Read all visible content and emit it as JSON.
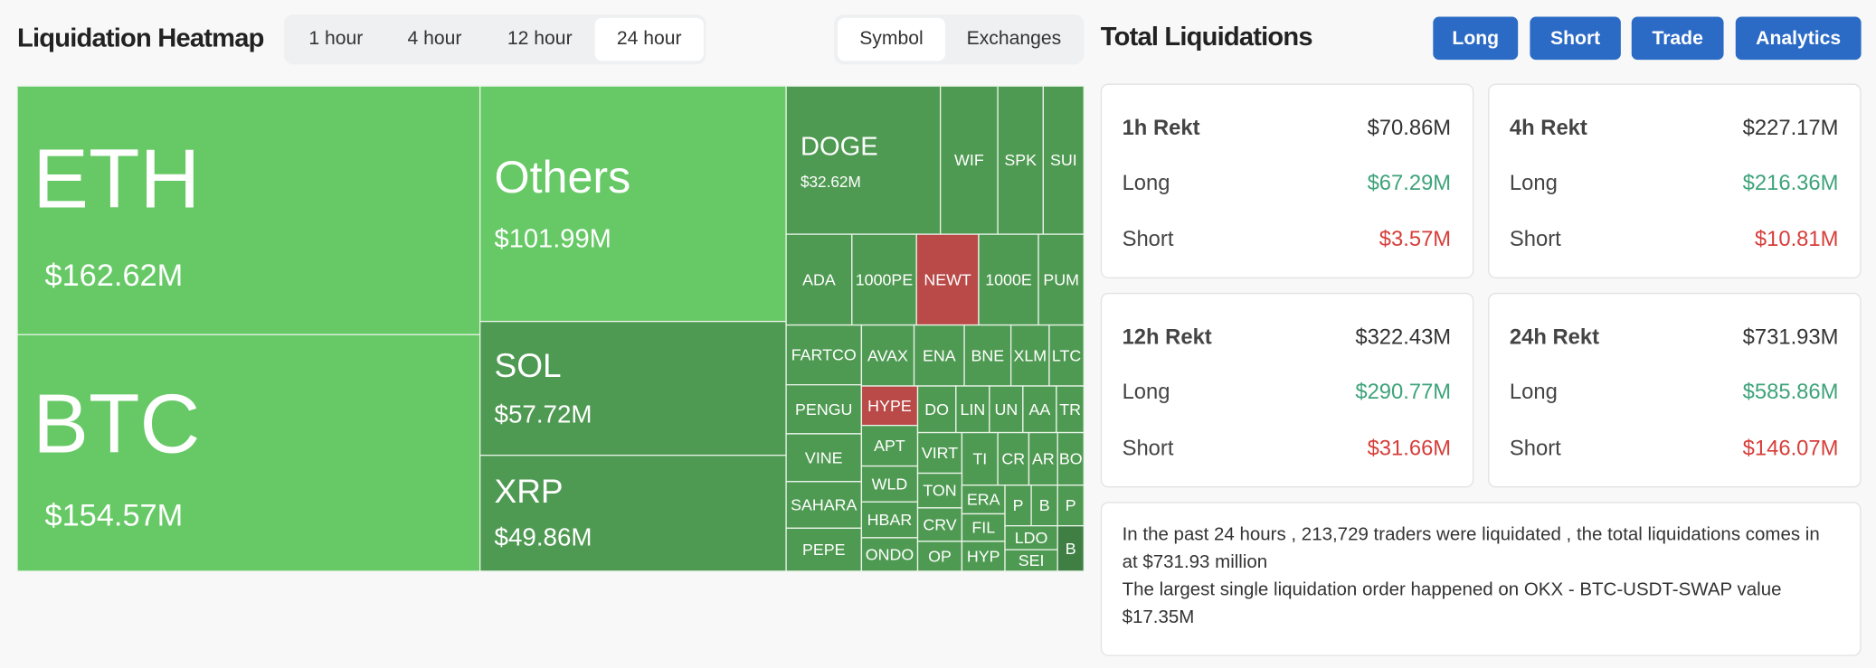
{
  "header": {
    "title": "Liquidation Heatmap",
    "time_tabs": [
      "1 hour",
      "4 hour",
      "12 hour",
      "24 hour"
    ],
    "active_time_tab": 3,
    "view_tabs": [
      "Symbol",
      "Exchanges"
    ],
    "active_view_tab": 0
  },
  "treemap": {
    "tiles": [
      {
        "label": "ETH",
        "value": "$162.62M",
        "color": "#66c966"
      },
      {
        "label": "BTC",
        "value": "$154.57M",
        "color": "#66c966"
      },
      {
        "label": "Others",
        "value": "$101.99M",
        "color": "#66c966"
      },
      {
        "label": "SOL",
        "value": "$57.72M",
        "color": "#4f9a52"
      },
      {
        "label": "XRP",
        "value": "$49.86M",
        "color": "#4f9a52"
      },
      {
        "label": "DOGE",
        "value": "$32.62M",
        "color": "#4f9a52"
      },
      {
        "label": "WIF",
        "color": "#4f9a52"
      },
      {
        "label": "SPK",
        "color": "#4f9a52"
      },
      {
        "label": "SUI",
        "color": "#4f9a52"
      },
      {
        "label": "ADA",
        "color": "#4f9a52"
      },
      {
        "label": "1000PE",
        "color": "#4f9a52"
      },
      {
        "label": "NEWT",
        "color": "#b94a48"
      },
      {
        "label": "1000E",
        "color": "#4f9a52"
      },
      {
        "label": "PUM",
        "color": "#4f9a52"
      },
      {
        "label": "FARTCO",
        "color": "#4f9a52"
      },
      {
        "label": "PENGU",
        "color": "#4f9a52"
      },
      {
        "label": "VINE",
        "color": "#4f9a52"
      },
      {
        "label": "SAHARA",
        "color": "#4f9a52"
      },
      {
        "label": "PEPE",
        "color": "#4f9a52"
      },
      {
        "label": "AVAX",
        "color": "#4f9a52"
      },
      {
        "label": "ENA",
        "color": "#4f9a52"
      },
      {
        "label": "BNE",
        "color": "#4f9a52"
      },
      {
        "label": "XLM",
        "color": "#4f9a52"
      },
      {
        "label": "LTC",
        "color": "#4f9a52"
      },
      {
        "label": "HYPE",
        "color": "#b94a48"
      },
      {
        "label": "APT",
        "color": "#4f9a52"
      },
      {
        "label": "WLD",
        "color": "#4f9a52"
      },
      {
        "label": "HBAR",
        "color": "#4f9a52"
      },
      {
        "label": "ONDO",
        "color": "#4f9a52"
      },
      {
        "label": "DO",
        "color": "#4f9a52"
      },
      {
        "label": "LIN",
        "color": "#4f9a52"
      },
      {
        "label": "UN",
        "color": "#4f9a52"
      },
      {
        "label": "AA",
        "color": "#4f9a52"
      },
      {
        "label": "TR",
        "color": "#4f9a52"
      },
      {
        "label": "VIRT",
        "color": "#4f9a52"
      },
      {
        "label": "TI",
        "color": "#4f9a52"
      },
      {
        "label": "CR",
        "color": "#4f9a52"
      },
      {
        "label": "AR",
        "color": "#4f9a52"
      },
      {
        "label": "BO",
        "color": "#4f9a52"
      },
      {
        "label": "TON",
        "color": "#4f9a52"
      },
      {
        "label": "CRV",
        "color": "#4f9a52"
      },
      {
        "label": "OP",
        "color": "#4f9a52"
      },
      {
        "label": "ERA",
        "color": "#4f9a52"
      },
      {
        "label": "FIL",
        "color": "#4f9a52"
      },
      {
        "label": "HYP",
        "color": "#4f9a52"
      },
      {
        "label": "P",
        "color": "#4f9a52"
      },
      {
        "label": "B",
        "color": "#4f9a52"
      },
      {
        "label": "P",
        "color": "#4f9a52"
      },
      {
        "label": "LDO",
        "color": "#4f9a52"
      },
      {
        "label": "SEI",
        "color": "#4f9a52"
      },
      {
        "label": "B",
        "color": "#3f7f43"
      }
    ]
  },
  "panel": {
    "title": "Total Liquidations",
    "buttons": [
      "Long",
      "Short",
      "Trade",
      "Analytics"
    ],
    "cards": [
      {
        "title": "1h Rekt",
        "total": "$70.86M",
        "rows": [
          {
            "label": "Long",
            "value": "$67.29M"
          },
          {
            "label": "Short",
            "value": "$3.57M"
          }
        ]
      },
      {
        "title": "4h Rekt",
        "total": "$227.17M",
        "rows": [
          {
            "label": "Long",
            "value": "$216.36M"
          },
          {
            "label": "Short",
            "value": "$10.81M"
          }
        ]
      },
      {
        "title": "12h Rekt",
        "total": "$322.43M",
        "rows": [
          {
            "label": "Long",
            "value": "$290.77M"
          },
          {
            "label": "Short",
            "value": "$31.66M"
          }
        ]
      },
      {
        "title": "24h Rekt",
        "total": "$731.93M",
        "rows": [
          {
            "label": "Long",
            "value": "$585.86M"
          },
          {
            "label": "Short",
            "value": "$146.07M"
          }
        ]
      }
    ],
    "summary": [
      "In the past 24 hours , 213,729 traders were liquidated , the total liquidations comes in at $731.93 million",
      "The largest single liquidation order happened on OKX - BTC-USDT-SWAP value $17.35M"
    ]
  }
}
